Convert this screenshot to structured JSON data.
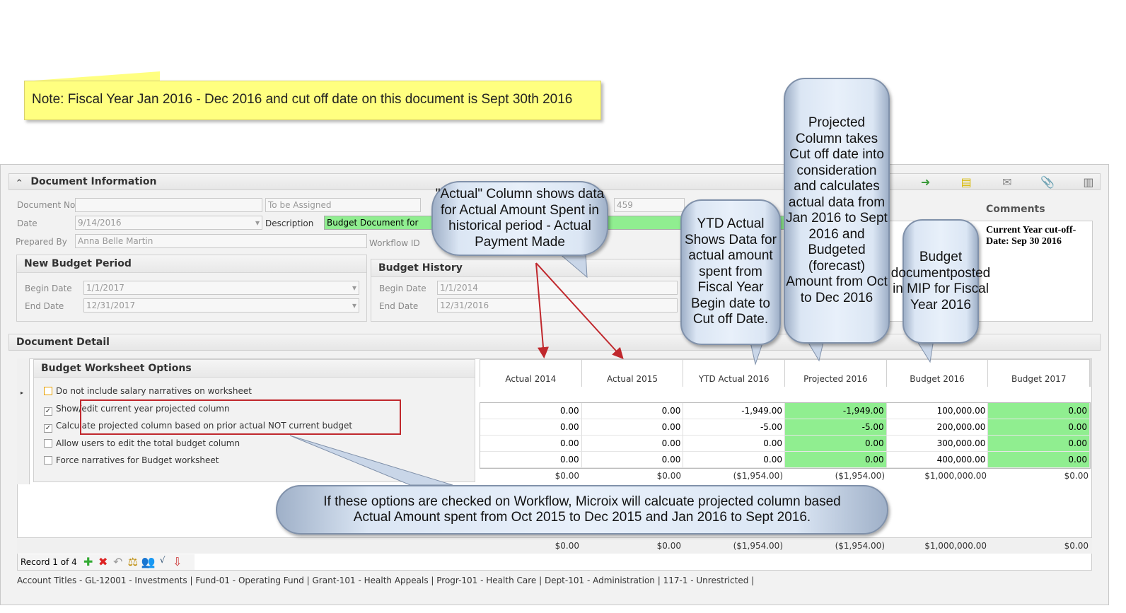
{
  "note": "Note: Fiscal Year Jan 2016 - Dec 2016 and cut off date on this document is Sept 30th 2016",
  "doc_info": {
    "title": "Document Information",
    "doc_no_label": "Document No.",
    "doc_no": "",
    "to_be_assigned": "To be Assigned",
    "date_label": "Date",
    "date": "9/14/2016",
    "description_label": "Description",
    "description": "Budget Document for",
    "prepared_label": "Prepared By",
    "prepared": "Anna Belle Martin",
    "workflow_label": "Workflow ID",
    "workflow_id": "459"
  },
  "new_period": {
    "title": "New Budget Period",
    "begin_label": "Begin Date",
    "begin": "1/1/2017",
    "end_label": "End Date",
    "end": "12/31/2017"
  },
  "history": {
    "title": "Budget History",
    "begin_label": "Begin Date",
    "begin": "1/1/2014",
    "end_label": "End Date",
    "end": "12/31/2016"
  },
  "comments": {
    "title": "Comments",
    "text": "Current Year cut-off-Date: Sep 30 2016"
  },
  "toolbar_icons": [
    "undo-icon",
    "import-icon",
    "notes-icon",
    "mail-icon",
    "attachment-icon",
    "print-icon"
  ],
  "detail": {
    "title": "Document Detail",
    "options_title": "Budget Worksheet Options",
    "options": [
      {
        "label": "Do not include salary narratives on worksheet",
        "checked": false
      },
      {
        "label": "Show/edit current year projected column",
        "checked": true
      },
      {
        "label": "Calculate projected column based on prior actual NOT current budget",
        "checked": true
      },
      {
        "label": "Allow users to edit the total budget column",
        "checked": false
      },
      {
        "label": "Force narratives for Budget worksheet",
        "checked": false
      }
    ]
  },
  "grid": {
    "columns": [
      "Actual  2014",
      "Actual  2015",
      "YTD Actual  2016",
      "Projected 2016",
      "Budget  2016",
      "Budget  2017"
    ],
    "rows": [
      [
        "0.00",
        "0.00",
        "-1,949.00",
        "-1,949.00",
        "100,000.00",
        "0.00"
      ],
      [
        "0.00",
        "0.00",
        "-5.00",
        "-5.00",
        "200,000.00",
        "0.00"
      ],
      [
        "0.00",
        "0.00",
        "0.00",
        "0.00",
        "300,000.00",
        "0.00"
      ],
      [
        "0.00",
        "0.00",
        "0.00",
        "0.00",
        "400,000.00",
        "0.00"
      ]
    ],
    "totals": [
      "$0.00",
      "$0.00",
      "($1,954.00)",
      "($1,954.00)",
      "$1,000,000.00",
      "$0.00"
    ],
    "green_color": "#90ee90"
  },
  "record": "Record 1 of 4",
  "record_icons": [
    "add-icon",
    "delete-icon",
    "undo-icon",
    "balance-icon",
    "users-icon",
    "formula-icon",
    "export-icon"
  ],
  "account_titles": "Account Titles - GL-12001 - Investments | Fund-01 - Operating Fund | Grant-101 - Health Appeals | Progr-101 - Health Care | Dept-101 - Administration | 117-1 - Unrestricted |",
  "callouts": {
    "actual": "\"Actual\" Column shows data for Actual Amount Spent in historical period - Actual Payment Made",
    "ytd": "YTD Actual Shows Data for actual amount spent from Fiscal Year Begin date to Cut off Date.",
    "projected": "Projected Column takes Cut off date into consideration and calculates actual data from Jan 2016 to Sept 2016 and Budgeted (forecast) Amount from Oct to Dec 2016",
    "budget": "Budget documentposted in MIP for Fiscal Year 2016",
    "options": "If these options are checked on Workflow, Microix will calcuate projected column based Actual Amount spent from Oct 2015 to Dec 2015 and Jan 2016 to Sept 2016."
  }
}
